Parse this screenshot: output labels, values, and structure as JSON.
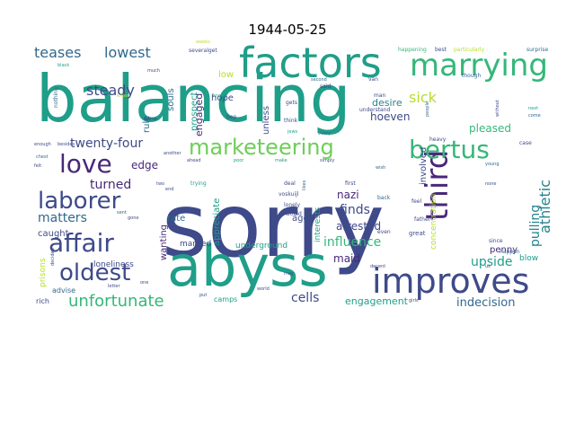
{
  "title": "1944-05-25",
  "palette": {
    "dark_purple": "#482878",
    "indigo": "#3e4a89",
    "blue": "#31688e",
    "teal_blue": "#26828e",
    "teal": "#1f9e89",
    "green": "#35b779",
    "light_green": "#6ece58",
    "lime": "#b5de2b",
    "yellow": "#c8e020"
  },
  "words": [
    {
      "text": "sorry",
      "size": 98,
      "color": "indigo"
    },
    {
      "text": "balancing",
      "size": 72,
      "color": "teal"
    },
    {
      "text": "abyss",
      "size": 62,
      "color": "teal"
    },
    {
      "text": "factors",
      "size": 46,
      "color": "teal"
    },
    {
      "text": "improves",
      "size": 38,
      "color": "indigo"
    },
    {
      "text": "marrying",
      "size": 34,
      "color": "green"
    },
    {
      "text": "third",
      "size": 34,
      "color": "dark_purple"
    },
    {
      "text": "bertus",
      "size": 28,
      "color": "green"
    },
    {
      "text": "marketeering",
      "size": 24,
      "color": "light_green"
    },
    {
      "text": "affair",
      "size": 28,
      "color": "indigo"
    },
    {
      "text": "love",
      "size": 28,
      "color": "dark_purple"
    },
    {
      "text": "laborer",
      "size": 26,
      "color": "indigo"
    },
    {
      "text": "oldest",
      "size": 26,
      "color": "indigo"
    },
    {
      "text": "unfortunate",
      "size": 18,
      "color": "green"
    },
    {
      "text": "athletic",
      "size": 16,
      "color": "teal_blue"
    },
    {
      "text": "teases",
      "size": 16,
      "color": "blue"
    },
    {
      "text": "lowest",
      "size": 16,
      "color": "blue"
    },
    {
      "text": "steady",
      "size": 16,
      "color": "indigo"
    },
    {
      "text": "sick",
      "size": 16,
      "color": "lime"
    },
    {
      "text": "twenty-four",
      "size": 14,
      "color": "indigo"
    },
    {
      "text": "turned",
      "size": 14,
      "color": "dark_purple"
    },
    {
      "text": "edge",
      "size": 12,
      "color": "dark_purple"
    },
    {
      "text": "matters",
      "size": 14,
      "color": "blue"
    },
    {
      "text": "finds",
      "size": 14,
      "color": "indigo"
    },
    {
      "text": "influence",
      "size": 14,
      "color": "green"
    },
    {
      "text": "upside",
      "size": 14,
      "color": "teal"
    },
    {
      "text": "pulling",
      "size": 14,
      "color": "teal_blue"
    },
    {
      "text": "cells",
      "size": 14,
      "color": "indigo"
    },
    {
      "text": "indecision",
      "size": 13,
      "color": "blue"
    },
    {
      "text": "engagement",
      "size": 11,
      "color": "teal"
    },
    {
      "text": "nazi",
      "size": 12,
      "color": "dark_purple"
    },
    {
      "text": "maid",
      "size": 12,
      "color": "dark_purple"
    },
    {
      "text": "arrested",
      "size": 12,
      "color": "indigo"
    },
    {
      "text": "pleased",
      "size": 12,
      "color": "green"
    },
    {
      "text": "hoeven",
      "size": 12,
      "color": "indigo"
    },
    {
      "text": "desire",
      "size": 11,
      "color": "teal_blue"
    },
    {
      "text": "engaged",
      "size": 11,
      "color": "dark_purple"
    },
    {
      "text": "hope",
      "size": 10,
      "color": "indigo"
    },
    {
      "text": "low",
      "size": 10,
      "color": "lime"
    },
    {
      "text": "rule",
      "size": 10,
      "color": "blue"
    },
    {
      "text": "souls",
      "size": 10,
      "color": "blue"
    },
    {
      "text": "prospect",
      "size": 10,
      "color": "teal"
    },
    {
      "text": "unless",
      "size": 10,
      "color": "indigo"
    },
    {
      "text": "involved",
      "size": 10,
      "color": "indigo"
    },
    {
      "text": "caught",
      "size": 10,
      "color": "indigo"
    },
    {
      "text": "wanting",
      "size": 10,
      "color": "dark_purple"
    },
    {
      "text": "rate",
      "size": 10,
      "color": "blue"
    },
    {
      "text": "ago",
      "size": 10,
      "color": "indigo"
    },
    {
      "text": "appreciate",
      "size": 10,
      "color": "teal"
    },
    {
      "text": "interests",
      "size": 9,
      "color": "teal"
    },
    {
      "text": "married",
      "size": 9,
      "color": "indigo"
    },
    {
      "text": "underground",
      "size": 9,
      "color": "teal"
    },
    {
      "text": "penny",
      "size": 10,
      "color": "dark_purple"
    },
    {
      "text": "blow",
      "size": 9,
      "color": "teal"
    },
    {
      "text": "concentration",
      "size": 9,
      "color": "lime"
    },
    {
      "text": "prisons",
      "size": 9,
      "color": "lime"
    },
    {
      "text": "loneliness",
      "size": 9,
      "color": "indigo"
    },
    {
      "text": "advise",
      "size": 8,
      "color": "blue"
    },
    {
      "text": "rich",
      "size": 8,
      "color": "indigo"
    },
    {
      "text": "camps",
      "size": 8,
      "color": "teal"
    },
    {
      "text": "nothing",
      "size": 6,
      "color": "blue"
    },
    {
      "text": "severalget",
      "size": 6,
      "color": "indigo"
    },
    {
      "text": "weeks",
      "size": 5,
      "color": "lime"
    },
    {
      "text": "happening",
      "size": 6,
      "color": "green"
    },
    {
      "text": "best",
      "size": 6,
      "color": "indigo"
    },
    {
      "text": "particularly",
      "size": 6,
      "color": "lime"
    },
    {
      "text": "surprise",
      "size": 6,
      "color": "blue"
    },
    {
      "text": "black",
      "size": 5,
      "color": "teal"
    },
    {
      "text": "much",
      "size": 5,
      "color": "indigo"
    },
    {
      "text": "second",
      "size": 5,
      "color": "blue"
    },
    {
      "text": "van",
      "size": 6,
      "color": "indigo"
    },
    {
      "text": "said",
      "size": 6,
      "color": "indigo"
    },
    {
      "text": "man",
      "size": 6,
      "color": "indigo"
    },
    {
      "text": "knows",
      "size": 5,
      "color": "teal"
    },
    {
      "text": "though",
      "size": 6,
      "color": "blue"
    },
    {
      "text": "people",
      "size": 5,
      "color": "blue"
    },
    {
      "text": "gets",
      "size": 6,
      "color": "indigo"
    },
    {
      "text": "understand",
      "size": 6,
      "color": "indigo"
    },
    {
      "text": "think",
      "size": 6,
      "color": "indigo"
    },
    {
      "text": "jews",
      "size": 5,
      "color": "teal"
    },
    {
      "text": "every",
      "size": 5,
      "color": "blue"
    },
    {
      "text": "without",
      "size": 5,
      "color": "indigo"
    },
    {
      "text": "come",
      "size": 5,
      "color": "blue"
    },
    {
      "text": "next",
      "size": 5,
      "color": "teal"
    },
    {
      "text": "case",
      "size": 6,
      "color": "indigo"
    },
    {
      "text": "heavy",
      "size": 6,
      "color": "indigo"
    },
    {
      "text": "enough",
      "size": 5,
      "color": "indigo"
    },
    {
      "text": "chest",
      "size": 5,
      "color": "blue"
    },
    {
      "text": "felt",
      "size": 5,
      "color": "indigo"
    },
    {
      "text": "another",
      "size": 5,
      "color": "indigo"
    },
    {
      "text": "poor",
      "size": 5,
      "color": "teal"
    },
    {
      "text": "ahead",
      "size": 5,
      "color": "indigo"
    },
    {
      "text": "make",
      "size": 5,
      "color": "teal"
    },
    {
      "text": "simply",
      "size": 5,
      "color": "indigo"
    },
    {
      "text": "wish",
      "size": 5,
      "color": "blue"
    },
    {
      "text": "young",
      "size": 5,
      "color": "blue"
    },
    {
      "text": "trying",
      "size": 6,
      "color": "teal"
    },
    {
      "text": "deal",
      "size": 6,
      "color": "indigo"
    },
    {
      "text": "voskuijl",
      "size": 6,
      "color": "indigo"
    },
    {
      "text": "lonely",
      "size": 6,
      "color": "indigo"
    },
    {
      "text": "would",
      "size": 6,
      "color": "indigo"
    },
    {
      "text": "likes",
      "size": 5,
      "color": "blue"
    },
    {
      "text": "first",
      "size": 6,
      "color": "indigo"
    },
    {
      "text": "back",
      "size": 6,
      "color": "blue"
    },
    {
      "text": "feel",
      "size": 6,
      "color": "indigo"
    },
    {
      "text": "none",
      "size": 5,
      "color": "indigo"
    },
    {
      "text": "father",
      "size": 6,
      "color": "indigo"
    },
    {
      "text": "great",
      "size": 7,
      "color": "indigo"
    },
    {
      "text": "since",
      "size": 6,
      "color": "indigo"
    },
    {
      "text": "happen",
      "size": 6,
      "color": "blue"
    },
    {
      "text": "two",
      "size": 5,
      "color": "indigo"
    },
    {
      "text": "end",
      "size": 5,
      "color": "indigo"
    },
    {
      "text": "sent",
      "size": 5,
      "color": "blue"
    },
    {
      "text": "gone",
      "size": 5,
      "color": "indigo"
    },
    {
      "text": "decided",
      "size": 5,
      "color": "indigo"
    },
    {
      "text": "besides",
      "size": 5,
      "color": "indigo"
    },
    {
      "text": "letter",
      "size": 5,
      "color": "indigo"
    },
    {
      "text": "put",
      "size": 5,
      "color": "indigo"
    },
    {
      "text": "world",
      "size": 5,
      "color": "indigo"
    },
    {
      "text": "may",
      "size": 5,
      "color": "indigo"
    },
    {
      "text": "decent",
      "size": 5,
      "color": "indigo"
    },
    {
      "text": "girls",
      "size": 5,
      "color": "indigo"
    },
    {
      "text": "us",
      "size": 5,
      "color": "indigo"
    },
    {
      "text": "one",
      "size": 5,
      "color": "indigo"
    },
    {
      "text": "even",
      "size": 6,
      "color": "indigo"
    },
    {
      "text": "bep",
      "size": 6,
      "color": "indigo"
    },
    {
      "text": "worse",
      "size": 5,
      "color": "indigo"
    },
    {
      "text": "know",
      "size": 5,
      "color": "lime"
    }
  ]
}
